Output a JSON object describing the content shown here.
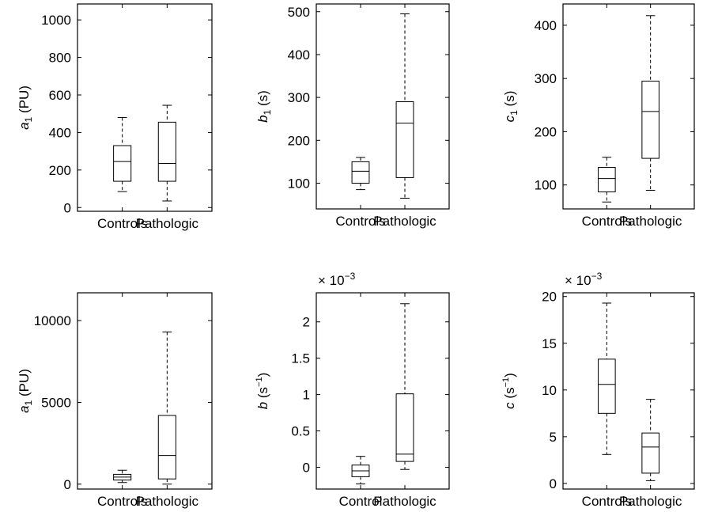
{
  "figure": {
    "layout": "2 rows x 3 columns of box plots",
    "colors": {
      "axes": "#000000",
      "box": "#000000",
      "background": "#ffffff"
    }
  },
  "chart_data": [
    {
      "type": "box",
      "title": "",
      "xlabel": "",
      "ylabel": {
        "sym": "a",
        "sub": "1",
        "sup": "",
        "unit": "PU"
      },
      "exponent_label": "",
      "categories": [
        "Controls",
        "Pathologic"
      ],
      "ylim": [
        -20,
        1085
      ],
      "yticks": [
        0,
        200,
        400,
        600,
        800,
        1000
      ],
      "ytick_labels": [
        "0",
        "200",
        "400",
        "600",
        "800",
        "1000"
      ],
      "grid": false,
      "boxes": [
        {
          "min": 85,
          "q1": 140,
          "median": 245,
          "q3": 330,
          "max": 480
        },
        {
          "min": 35,
          "q1": 140,
          "median": 235,
          "q3": 455,
          "max": 545
        }
      ]
    },
    {
      "type": "box",
      "title": "",
      "xlabel": "",
      "ylabel": {
        "sym": "b",
        "sub": "1",
        "sup": "",
        "unit": "s"
      },
      "exponent_label": "",
      "categories": [
        "Controls",
        "Pathologic"
      ],
      "ylim": [
        40,
        518
      ],
      "yticks": [
        100,
        200,
        300,
        400,
        500
      ],
      "ytick_labels": [
        "100",
        "200",
        "300",
        "400",
        "500"
      ],
      "grid": false,
      "boxes": [
        {
          "min": 85,
          "q1": 100,
          "median": 128,
          "q3": 150,
          "max": 160
        },
        {
          "min": 65,
          "q1": 113,
          "median": 240,
          "q3": 290,
          "max": 495
        }
      ]
    },
    {
      "type": "box",
      "title": "",
      "xlabel": "",
      "ylabel": {
        "sym": "c",
        "sub": "1",
        "sup": "",
        "unit": "s"
      },
      "exponent_label": "",
      "categories": [
        "Controls",
        "Pathologic"
      ],
      "ylim": [
        55,
        440
      ],
      "yticks": [
        100,
        200,
        300,
        400
      ],
      "ytick_labels": [
        "100",
        "200",
        "300",
        "400"
      ],
      "grid": false,
      "boxes": [
        {
          "min": 68,
          "q1": 87,
          "median": 112,
          "q3": 133,
          "max": 152
        },
        {
          "min": 90,
          "q1": 150,
          "median": 238,
          "q3": 295,
          "max": 418
        }
      ]
    },
    {
      "type": "box",
      "title": "",
      "xlabel": "",
      "ylabel": {
        "sym": "a",
        "sub": "1",
        "sup": "",
        "unit": "PU"
      },
      "exponent_label": "",
      "categories": [
        "Controls",
        "Pathologic"
      ],
      "ylim": [
        -300,
        11700
      ],
      "yticks": [
        0,
        5000,
        10000
      ],
      "ytick_labels": [
        "0",
        "5000",
        "10000"
      ],
      "grid": false,
      "boxes": [
        {
          "min": 100,
          "q1": 250,
          "median": 430,
          "q3": 600,
          "max": 850
        },
        {
          "min": 0,
          "q1": 320,
          "median": 1750,
          "q3": 4200,
          "max": 9300
        }
      ]
    },
    {
      "type": "box",
      "title": "",
      "xlabel": "",
      "ylabel": {
        "sym": "b",
        "sub": "",
        "sup": "−1",
        "unit": "s"
      },
      "exponent_label": "× 10−3",
      "categories": [
        "Control",
        "Pathologic"
      ],
      "ylim": [
        -0.3,
        2.4
      ],
      "yticks": [
        0,
        0.5,
        1,
        1.5,
        2
      ],
      "ytick_labels": [
        "0",
        "0.5",
        "1",
        "1.5",
        "2"
      ],
      "grid": false,
      "boxes": [
        {
          "min": -0.23,
          "q1": -0.13,
          "median": -0.05,
          "q3": 0.03,
          "max": 0.15
        },
        {
          "min": -0.03,
          "q1": 0.08,
          "median": 0.18,
          "q3": 1.01,
          "max": 2.25
        }
      ]
    },
    {
      "type": "box",
      "title": "",
      "xlabel": "",
      "ylabel": {
        "sym": "c",
        "sub": "",
        "sup": "−1",
        "unit": "s"
      },
      "exponent_label": "× 10−3",
      "categories": [
        "Controls",
        "Pathologic"
      ],
      "ylim": [
        -0.6,
        20.4
      ],
      "yticks": [
        0,
        5,
        10,
        15,
        20
      ],
      "ytick_labels": [
        "0",
        "5",
        "10",
        "15",
        "20"
      ],
      "grid": false,
      "boxes": [
        {
          "min": 3.1,
          "q1": 7.5,
          "median": 10.6,
          "q3": 13.3,
          "max": 19.3
        },
        {
          "min": 0.3,
          "q1": 1.1,
          "median": 3.9,
          "q3": 5.4,
          "max": 9.0
        }
      ]
    }
  ]
}
